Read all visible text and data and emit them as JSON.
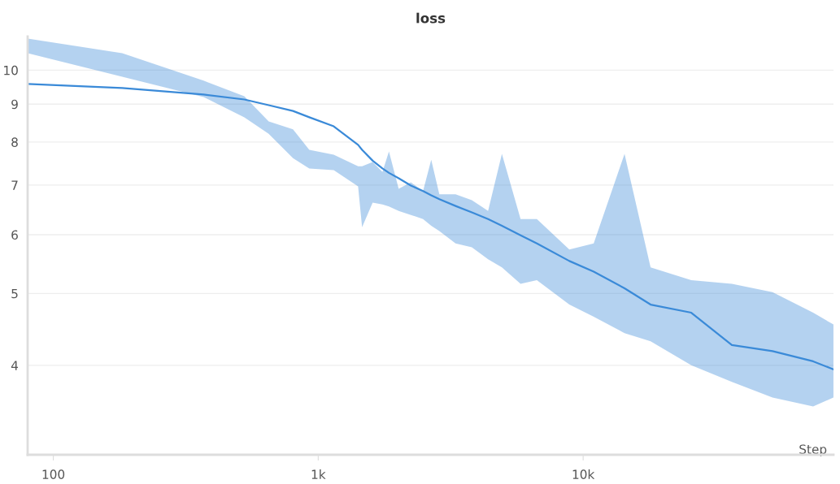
{
  "chart_data": {
    "type": "line",
    "title": "loss",
    "xlabel": "Step",
    "log": "xy",
    "grid": "y",
    "xlim": [
      80,
      88100
    ],
    "xticks": [
      {
        "value": 100,
        "label": "100"
      },
      {
        "value": 1000,
        "label": "1k"
      },
      {
        "value": 10000,
        "label": "10k"
      }
    ],
    "ylim": [
      3.03,
      11.1
    ],
    "yticks": [
      4,
      5,
      6,
      7,
      8,
      9,
      10
    ],
    "series": [
      {
        "color": "#3a8ad8",
        "x": [
          80,
          182,
          369,
          526,
          650,
          803,
          925,
          1144,
          1414,
          1464,
          1605,
          1747,
          1849,
          2012,
          2237,
          2487,
          2670,
          2865,
          3299,
          3800,
          4377,
          4935,
          5804,
          6687,
          8868,
          10960,
          14330,
          17970,
          25590,
          36420,
          51840,
          73810,
          88050
        ],
        "values": [
          9.58,
          9.46,
          9.27,
          9.13,
          8.97,
          8.81,
          8.64,
          8.4,
          7.93,
          7.81,
          7.55,
          7.37,
          7.27,
          7.15,
          6.99,
          6.87,
          6.78,
          6.7,
          6.56,
          6.43,
          6.3,
          6.17,
          5.99,
          5.84,
          5.53,
          5.35,
          5.08,
          4.83,
          4.71,
          4.26,
          4.18,
          4.05,
          3.95
        ],
        "upper": [
          11.03,
          10.54,
          9.68,
          9.22,
          8.53,
          8.32,
          7.81,
          7.69,
          7.42,
          7.42,
          7.52,
          7.29,
          7.77,
          6.92,
          7.06,
          6.87,
          7.57,
          6.8,
          6.8,
          6.68,
          6.46,
          7.71,
          6.3,
          6.3,
          5.73,
          5.84,
          7.71,
          5.42,
          5.21,
          5.15,
          5.02,
          4.71,
          4.54
        ],
        "lower": [
          10.54,
          9.8,
          9.2,
          8.64,
          8.21,
          7.61,
          7.37,
          7.33,
          6.97,
          6.14,
          6.63,
          6.59,
          6.55,
          6.46,
          6.38,
          6.3,
          6.17,
          6.07,
          5.84,
          5.77,
          5.56,
          5.42,
          5.15,
          5.21,
          4.83,
          4.65,
          4.42,
          4.31,
          4.0,
          3.8,
          3.62,
          3.52,
          3.62
        ]
      }
    ]
  }
}
